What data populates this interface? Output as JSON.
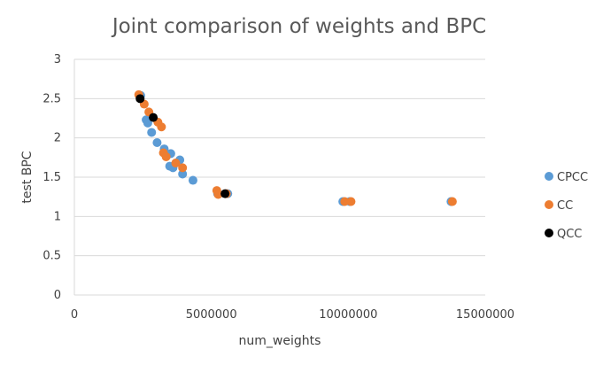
{
  "chart_data": {
    "type": "scatter",
    "title": "Joint comparison of weights and BPC",
    "xlabel": "num_weights",
    "ylabel": "test BPC",
    "xlim": [
      0,
      15000000
    ],
    "ylim": [
      0,
      3
    ],
    "xticks": [
      "0",
      "5000000",
      "10000000",
      "15000000"
    ],
    "yticks": [
      "0",
      "0.5",
      "1",
      "1.5",
      "2",
      "2.5",
      "3"
    ],
    "grid": "horizontal",
    "legend": "right",
    "series": [
      {
        "name": "CPCC",
        "color": "#5b9bd5",
        "points": [
          [
            2420000,
            2.54
          ],
          [
            2620000,
            2.23
          ],
          [
            2680000,
            2.19
          ],
          [
            2820000,
            2.07
          ],
          [
            3020000,
            1.94
          ],
          [
            3280000,
            1.86
          ],
          [
            3330000,
            1.79
          ],
          [
            3520000,
            1.8
          ],
          [
            3480000,
            1.64
          ],
          [
            3600000,
            1.62
          ],
          [
            3850000,
            1.72
          ],
          [
            3950000,
            1.54
          ],
          [
            4330000,
            1.46
          ],
          [
            5230000,
            1.29
          ],
          [
            5600000,
            1.29
          ],
          [
            9800000,
            1.19
          ],
          [
            10050000,
            1.19
          ],
          [
            13750000,
            1.19
          ]
        ]
      },
      {
        "name": "CC",
        "color": "#ed7d31",
        "points": [
          [
            2350000,
            2.55
          ],
          [
            2550000,
            2.43
          ],
          [
            2720000,
            2.33
          ],
          [
            3050000,
            2.2
          ],
          [
            3180000,
            2.14
          ],
          [
            3250000,
            1.81
          ],
          [
            3350000,
            1.76
          ],
          [
            3700000,
            1.68
          ],
          [
            3950000,
            1.62
          ],
          [
            5200000,
            1.33
          ],
          [
            5250000,
            1.28
          ],
          [
            5550000,
            1.29
          ],
          [
            9870000,
            1.19
          ],
          [
            10100000,
            1.19
          ],
          [
            13800000,
            1.19
          ]
        ]
      },
      {
        "name": "QCC",
        "color": "#000000",
        "points": [
          [
            2400000,
            2.5
          ],
          [
            2880000,
            2.26
          ],
          [
            5500000,
            1.29
          ]
        ]
      }
    ]
  }
}
